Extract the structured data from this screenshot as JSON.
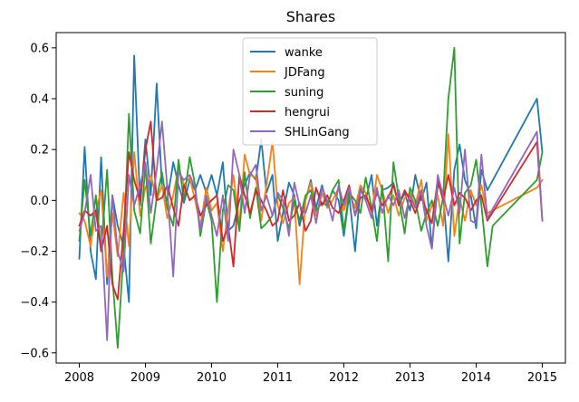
{
  "chart_data": {
    "type": "line",
    "title": "Shares",
    "xlabel": "",
    "ylabel": "",
    "xlim": [
      2007.65,
      2015.35
    ],
    "ylim": [
      -0.64,
      0.66
    ],
    "xticks": [
      2008,
      2009,
      2010,
      2011,
      2012,
      2013,
      2014,
      2015
    ],
    "xtick_labels": [
      "2008",
      "2009",
      "2010",
      "2011",
      "2012",
      "2013",
      "2014",
      "2015"
    ],
    "yticks": [
      -0.6,
      -0.4,
      -0.2,
      0.0,
      0.2,
      0.4,
      0.6
    ],
    "ytick_labels": [
      "−0.6",
      "−0.4",
      "−0.2",
      "0.0",
      "0.2",
      "0.4",
      "0.6"
    ],
    "legend_position": "top-center",
    "series": [
      {
        "name": "wanke",
        "color": "#1f77b4",
        "x": [
          2008.0,
          2008.08,
          2008.17,
          2008.25,
          2008.33,
          2008.42,
          2008.5,
          2008.58,
          2008.67,
          2008.75,
          2008.83,
          2008.92,
          2009.0,
          2009.08,
          2009.17,
          2009.25,
          2009.33,
          2009.42,
          2009.5,
          2009.58,
          2009.67,
          2009.75,
          2009.83,
          2009.92,
          2010.0,
          2010.08,
          2010.17,
          2010.25,
          2010.33,
          2010.42,
          2010.5,
          2010.58,
          2010.67,
          2010.75,
          2010.83,
          2010.92,
          2011.0,
          2011.08,
          2011.17,
          2011.25,
          2011.33,
          2011.42,
          2011.5,
          2011.58,
          2011.67,
          2011.75,
          2011.83,
          2011.92,
          2012.0,
          2012.08,
          2012.17,
          2012.25,
          2012.33,
          2012.42,
          2012.5,
          2012.58,
          2012.67,
          2012.75,
          2012.83,
          2012.92,
          2013.0,
          2013.08,
          2013.17,
          2013.25,
          2013.33,
          2013.42,
          2013.5,
          2013.58,
          2013.67,
          2013.75,
          2013.83,
          2013.92,
          2014.0,
          2014.08,
          2014.17,
          2014.92,
          2015.0
        ],
        "values": [
          -0.23,
          0.21,
          -0.2,
          -0.31,
          0.17,
          -0.33,
          0.02,
          -0.1,
          -0.18,
          -0.4,
          0.57,
          -0.02,
          0.24,
          0.02,
          0.46,
          0.05,
          0.0,
          0.15,
          0.06,
          -0.01,
          0.08,
          0.04,
          0.1,
          0.03,
          0.1,
          0.02,
          0.15,
          -0.12,
          -0.1,
          0.0,
          0.06,
          0.11,
          0.08,
          0.24,
          0.03,
          0.1,
          -0.16,
          -0.05,
          0.07,
          0.02,
          -0.1,
          0.0,
          0.08,
          -0.03,
          0.06,
          -0.02,
          0.04,
          0.0,
          -0.14,
          0.02,
          -0.2,
          0.05,
          0.0,
          0.1,
          -0.1,
          0.04,
          0.05,
          0.07,
          -0.02,
          0.03,
          -0.04,
          0.1,
          0.0,
          0.07,
          -0.19,
          0.06,
          0.03,
          -0.24,
          0.12,
          0.22,
          0.08,
          0.02,
          -0.11,
          0.12,
          0.04,
          0.4,
          0.19
        ]
      },
      {
        "name": "JDFang",
        "color": "#ff7f0e",
        "x": [
          2008.0,
          2008.08,
          2008.17,
          2008.25,
          2008.33,
          2008.42,
          2008.5,
          2008.58,
          2008.67,
          2008.75,
          2008.83,
          2008.92,
          2009.0,
          2009.08,
          2009.17,
          2009.25,
          2009.33,
          2009.42,
          2009.5,
          2009.58,
          2009.67,
          2009.75,
          2009.83,
          2009.92,
          2010.0,
          2010.08,
          2010.17,
          2010.25,
          2010.33,
          2010.42,
          2010.5,
          2010.58,
          2010.67,
          2010.75,
          2010.83,
          2010.92,
          2011.0,
          2011.08,
          2011.17,
          2011.25,
          2011.33,
          2011.42,
          2011.5,
          2011.58,
          2011.67,
          2011.75,
          2011.83,
          2011.92,
          2012.0,
          2012.08,
          2012.17,
          2012.25,
          2012.33,
          2012.42,
          2012.5,
          2012.58,
          2012.67,
          2012.75,
          2012.83,
          2012.92,
          2013.0,
          2013.08,
          2013.17,
          2013.25,
          2013.33,
          2013.42,
          2013.5,
          2013.58,
          2013.67,
          2013.75,
          2013.83,
          2013.92,
          2014.0,
          2014.08,
          2014.17,
          2014.92,
          2015.0
        ],
        "values": [
          -0.05,
          -0.08,
          -0.18,
          -0.04,
          0.04,
          -0.3,
          -0.05,
          -0.22,
          0.03,
          -0.18,
          0.19,
          -0.06,
          0.05,
          0.1,
          0.0,
          0.06,
          -0.07,
          0.02,
          0.13,
          0.06,
          0.09,
          0.0,
          -0.1,
          0.05,
          -0.04,
          -0.01,
          -0.2,
          -0.04,
          0.1,
          -0.1,
          0.18,
          0.1,
          0.09,
          -0.08,
          0.06,
          0.23,
          -0.02,
          -0.09,
          -0.01,
          0.01,
          -0.33,
          0.0,
          0.07,
          -0.06,
          0.03,
          -0.03,
          0.0,
          0.05,
          -0.04,
          0.03,
          -0.03,
          0.06,
          0.03,
          -0.05,
          0.1,
          0.04,
          -0.05,
          0.02,
          -0.06,
          0.01,
          0.03,
          -0.02,
          0.08,
          -0.08,
          -0.02,
          0.02,
          -0.1,
          0.26,
          -0.14,
          0.01,
          -0.08,
          0.04,
          -0.02,
          0.06,
          -0.05,
          0.05,
          0.08
        ]
      },
      {
        "name": "suning",
        "color": "#2ca02c",
        "x": [
          2008.0,
          2008.08,
          2008.17,
          2008.25,
          2008.33,
          2008.42,
          2008.5,
          2008.58,
          2008.67,
          2008.75,
          2008.83,
          2008.92,
          2009.0,
          2009.08,
          2009.17,
          2009.25,
          2009.33,
          2009.42,
          2009.5,
          2009.58,
          2009.67,
          2009.75,
          2009.83,
          2009.92,
          2010.0,
          2010.08,
          2010.17,
          2010.25,
          2010.33,
          2010.42,
          2010.5,
          2010.58,
          2010.67,
          2010.75,
          2010.83,
          2010.92,
          2011.0,
          2011.08,
          2011.17,
          2011.25,
          2011.33,
          2011.42,
          2011.5,
          2011.58,
          2011.67,
          2011.75,
          2011.83,
          2011.92,
          2012.0,
          2012.08,
          2012.17,
          2012.25,
          2012.33,
          2012.42,
          2012.5,
          2012.58,
          2012.67,
          2012.75,
          2012.83,
          2012.92,
          2013.0,
          2013.08,
          2013.17,
          2013.25,
          2013.33,
          2013.42,
          2013.5,
          2013.58,
          2013.67,
          2013.75,
          2013.83,
          2013.92,
          2014.0,
          2014.08,
          2014.17,
          2014.25,
          2014.92,
          2015.0
        ],
        "values": [
          -0.16,
          0.08,
          -0.14,
          0.02,
          -0.2,
          0.12,
          -0.3,
          -0.58,
          -0.2,
          0.34,
          -0.04,
          -0.13,
          0.14,
          -0.17,
          0.01,
          0.11,
          -0.03,
          -0.1,
          0.16,
          0.0,
          0.17,
          0.06,
          -0.14,
          0.0,
          -0.08,
          -0.4,
          -0.04,
          0.06,
          0.04,
          -0.12,
          0.11,
          -0.07,
          0.05,
          -0.11,
          -0.09,
          -0.06,
          0.02,
          -0.03,
          -0.11,
          0.0,
          -0.08,
          0.02,
          0.04,
          -0.04,
          -0.01,
          -0.02,
          0.04,
          0.08,
          -0.12,
          0.03,
          0.0,
          -0.05,
          0.09,
          -0.03,
          -0.16,
          0.06,
          -0.24,
          0.15,
          0.01,
          -0.13,
          0.05,
          0.0,
          -0.12,
          -0.05,
          0.0,
          -0.1,
          0.01,
          0.4,
          0.6,
          -0.17,
          0.03,
          0.06,
          0.16,
          -0.02,
          -0.26,
          -0.1,
          0.08,
          0.19
        ]
      },
      {
        "name": "hengrui",
        "color": "#d62728",
        "x": [
          2008.0,
          2008.08,
          2008.17,
          2008.25,
          2008.33,
          2008.42,
          2008.5,
          2008.58,
          2008.67,
          2008.75,
          2008.83,
          2008.92,
          2009.0,
          2009.08,
          2009.17,
          2009.25,
          2009.33,
          2009.42,
          2009.5,
          2009.58,
          2009.67,
          2009.75,
          2009.83,
          2009.92,
          2010.0,
          2010.08,
          2010.17,
          2010.25,
          2010.33,
          2010.42,
          2010.5,
          2010.58,
          2010.67,
          2010.75,
          2010.83,
          2010.92,
          2011.0,
          2011.08,
          2011.17,
          2011.25,
          2011.33,
          2011.42,
          2011.5,
          2011.58,
          2011.67,
          2011.75,
          2011.83,
          2011.92,
          2012.0,
          2012.08,
          2012.17,
          2012.25,
          2012.33,
          2012.42,
          2012.5,
          2012.58,
          2012.67,
          2012.75,
          2012.83,
          2012.92,
          2013.0,
          2013.08,
          2013.17,
          2013.25,
          2013.33,
          2013.42,
          2013.5,
          2013.58,
          2013.67,
          2013.75,
          2013.83,
          2013.92,
          2014.0,
          2014.08,
          2014.17,
          2014.92,
          2015.0
        ],
        "values": [
          -0.1,
          -0.04,
          -0.06,
          -0.04,
          -0.2,
          -0.1,
          -0.33,
          -0.39,
          -0.12,
          0.19,
          0.08,
          0.0,
          0.2,
          0.31,
          0.0,
          0.01,
          0.06,
          -0.03,
          -0.1,
          0.06,
          0.0,
          0.02,
          -0.06,
          -0.02,
          0.0,
          0.02,
          -0.16,
          -0.1,
          -0.26,
          0.1,
          0.02,
          -0.05,
          0.04,
          0.0,
          -0.04,
          -0.1,
          -0.08,
          0.04,
          -0.08,
          -0.06,
          -0.01,
          -0.12,
          -0.08,
          0.05,
          -0.02,
          0.02,
          -0.03,
          -0.05,
          0.0,
          0.06,
          -0.06,
          0.01,
          0.02,
          -0.04,
          0.03,
          -0.02,
          0.01,
          0.06,
          -0.02,
          0.04,
          0.0,
          -0.05,
          0.02,
          -0.04,
          -0.09,
          0.08,
          0.0,
          0.1,
          -0.02,
          0.03,
          0.01,
          -0.04,
          0.0,
          0.02,
          -0.08,
          0.23,
          -0.08
        ]
      },
      {
        "name": "SHLinGang",
        "color": "#9467bd",
        "x": [
          2008.0,
          2008.08,
          2008.17,
          2008.25,
          2008.33,
          2008.42,
          2008.5,
          2008.58,
          2008.67,
          2008.75,
          2008.83,
          2008.92,
          2009.0,
          2009.08,
          2009.17,
          2009.25,
          2009.33,
          2009.42,
          2009.5,
          2009.58,
          2009.67,
          2009.75,
          2009.83,
          2009.92,
          2010.0,
          2010.08,
          2010.17,
          2010.25,
          2010.33,
          2010.42,
          2010.5,
          2010.58,
          2010.67,
          2010.75,
          2010.83,
          2010.92,
          2011.0,
          2011.08,
          2011.17,
          2011.25,
          2011.33,
          2011.42,
          2011.5,
          2011.58,
          2011.67,
          2011.75,
          2011.83,
          2011.92,
          2012.0,
          2012.08,
          2012.17,
          2012.25,
          2012.33,
          2012.42,
          2012.5,
          2012.58,
          2012.67,
          2012.75,
          2012.83,
          2012.92,
          2013.0,
          2013.08,
          2013.17,
          2013.25,
          2013.33,
          2013.42,
          2013.5,
          2013.58,
          2013.67,
          2013.75,
          2013.83,
          2013.92,
          2014.0,
          2014.08,
          2014.17,
          2014.92,
          2015.0
        ],
        "values": [
          -0.12,
          -0.05,
          0.1,
          -0.12,
          -0.1,
          -0.55,
          0.02,
          -0.2,
          -0.28,
          0.1,
          -0.02,
          0.06,
          0.15,
          -0.05,
          0.12,
          0.31,
          0.05,
          -0.3,
          0.11,
          0.08,
          0.1,
          0.05,
          -0.12,
          0.02,
          -0.06,
          -0.14,
          0.02,
          -0.16,
          0.2,
          0.1,
          -0.05,
          0.1,
          0.14,
          -0.04,
          0.02,
          -0.06,
          0.03,
          0.0,
          -0.14,
          0.07,
          -0.02,
          -0.05,
          0.02,
          -0.09,
          0.05,
          0.0,
          -0.08,
          0.06,
          -0.02,
          0.05,
          -0.06,
          0.04,
          0.0,
          -0.07,
          0.05,
          -0.05,
          0.02,
          -0.02,
          0.04,
          -0.07,
          0.02,
          -0.03,
          0.04,
          -0.1,
          -0.19,
          0.1,
          0.02,
          -0.06,
          0.05,
          -0.05,
          0.2,
          -0.08,
          -0.09,
          0.18,
          -0.07,
          0.27,
          -0.08
        ]
      }
    ]
  }
}
